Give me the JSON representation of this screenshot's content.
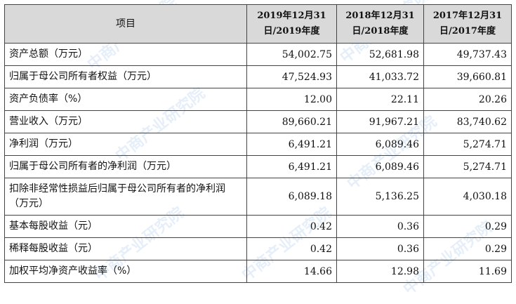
{
  "table": {
    "header": {
      "item": "项目",
      "years": [
        {
          "line1": "2019年12月31",
          "line2": "日/2019年度"
        },
        {
          "line1": "2018年12月31",
          "line2": "日/2018年度"
        },
        {
          "line1": "2017年12月31",
          "line2": "日/2017年度"
        }
      ]
    },
    "rows": [
      {
        "label": "资产总额（万元）",
        "values": [
          "54,002.75",
          "52,681.98",
          "49,737.43"
        ]
      },
      {
        "label": "归属于母公司所有者权益（万元）",
        "values": [
          "47,524.93",
          "41,033.72",
          "39,660.81"
        ]
      },
      {
        "label": "资产负债率（%）",
        "values": [
          "12.00",
          "22.11",
          "20.26"
        ]
      },
      {
        "label": "营业收入（万元）",
        "values": [
          "89,660.21",
          "91,967.21",
          "83,740.62"
        ]
      },
      {
        "label": "净利润（万元）",
        "values": [
          "6,491.21",
          "6,089.46",
          "5,274.71"
        ]
      },
      {
        "label": "归属于母公司所有者的净利润（万元）",
        "values": [
          "6,491.21",
          "6,089.46",
          "5,274.71"
        ]
      },
      {
        "label": "扣除非经常性损益后归属于母公司所有者的净利润（万元）",
        "values": [
          "6,089.18",
          "5,136.25",
          "4,030.18"
        ]
      },
      {
        "label": "基本每股收益（元）",
        "values": [
          "0.42",
          "0.36",
          "0.29"
        ]
      },
      {
        "label": "稀释每股收益（元）",
        "values": [
          "0.42",
          "0.36",
          "0.29"
        ]
      },
      {
        "label": "加权平均净资产收益率（%）",
        "values": [
          "14.66",
          "12.98",
          "11.69"
        ]
      }
    ]
  },
  "watermark": "中商产业研究院"
}
